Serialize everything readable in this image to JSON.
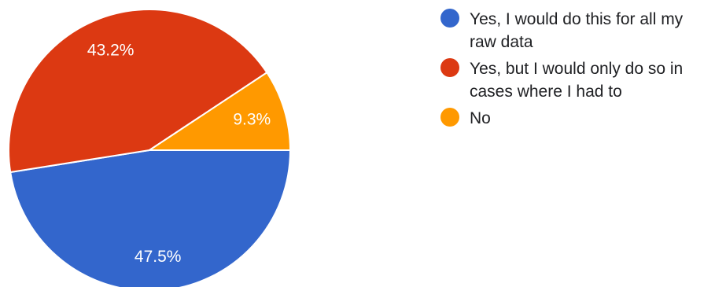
{
  "chart_data": {
    "type": "pie",
    "slices": [
      {
        "label": "Yes, I would do this for all my raw data",
        "value": 47.5,
        "display": "47.5%",
        "color": "#3366cc"
      },
      {
        "label": "Yes, but I would only do so in cases where I had to",
        "value": 43.2,
        "display": "43.2%",
        "color": "#dc3912"
      },
      {
        "label": "No",
        "value": 9.3,
        "display": "9.3%",
        "color": "#ff9900"
      }
    ],
    "legend_position": "right"
  }
}
